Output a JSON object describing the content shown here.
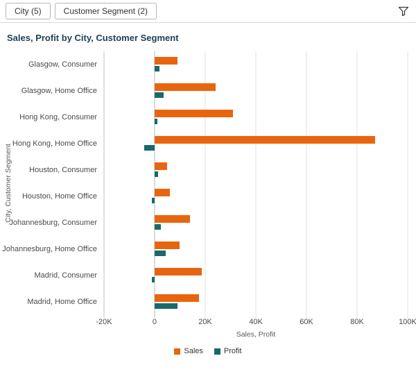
{
  "toolbar": {
    "filters": [
      {
        "label": "City (5)"
      },
      {
        "label": "Customer Segment (2)"
      }
    ]
  },
  "title": "Sales, Profit by City, Customer Segment",
  "colors": {
    "sales": "#E8650F",
    "profit": "#17696B",
    "title_text": "#1F4056"
  },
  "chart_data": {
    "type": "bar",
    "orientation": "horizontal",
    "title": "Sales, Profit by City, Customer Segment",
    "categories": [
      "Glasgow, Consumer",
      "Glasgow, Home Office",
      "Hong Kong, Consumer",
      "Hong Kong, Home Office",
      "Houston, Consumer",
      "Houston, Home Office",
      "Johannesburg, Consumer",
      "Johannesburg, Home Office",
      "Madrid, Consumer",
      "Madrid, Home Office"
    ],
    "series": [
      {
        "name": "Sales",
        "color": "#E8650F",
        "values": [
          9000,
          24000,
          31000,
          87000,
          5000,
          6000,
          14000,
          10000,
          18500,
          17500
        ]
      },
      {
        "name": "Profit",
        "color": "#17696B",
        "values": [
          2000,
          3500,
          1000,
          -4000,
          1500,
          -1000,
          2500,
          4500,
          -1000,
          9000
        ]
      }
    ],
    "xlabel": "Sales, Profit",
    "ylabel": "City, Customer Segment",
    "xlim": [
      -20000,
      100000
    ],
    "xticks": [
      -20000,
      0,
      20000,
      40000,
      60000,
      80000,
      100000
    ],
    "xtick_labels": [
      "-20K",
      "0",
      "20K",
      "40K",
      "60K",
      "80K",
      "100K"
    ],
    "grid": true,
    "legend_position": "bottom"
  }
}
